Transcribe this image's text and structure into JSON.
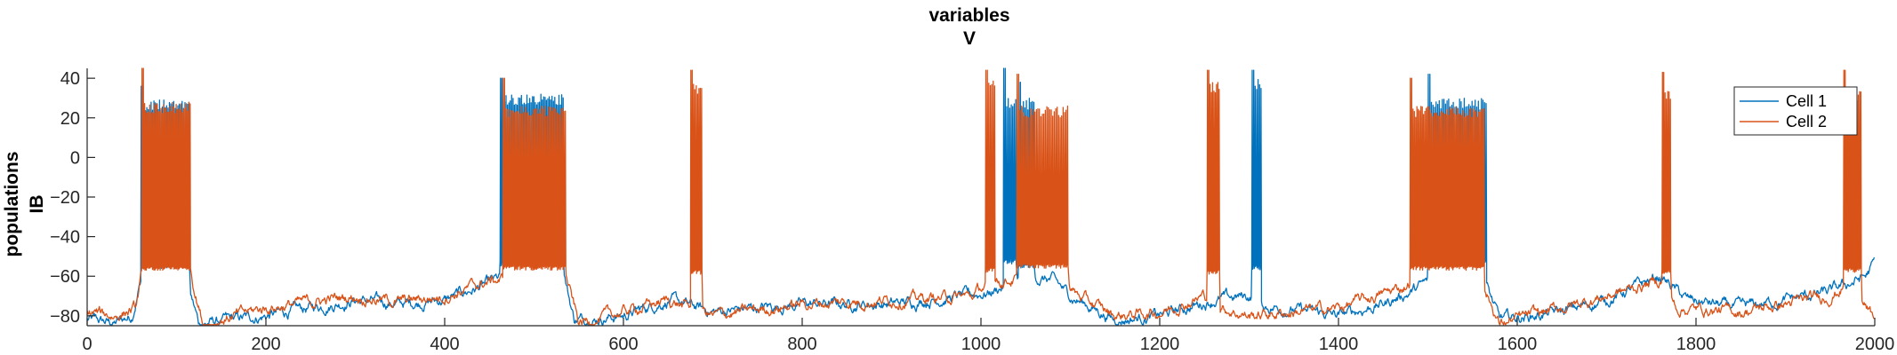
{
  "chart_data": {
    "type": "line",
    "title": [
      "variables",
      "V"
    ],
    "ylabel": [
      "populations",
      "IB"
    ],
    "xlabel": "",
    "xlim": [
      0,
      2000
    ],
    "ylim": [
      -85,
      45
    ],
    "xticks": [
      0,
      200,
      400,
      600,
      800,
      1000,
      1200,
      1400,
      1600,
      1800,
      2000
    ],
    "yticks": [
      -80,
      -60,
      -40,
      -20,
      0,
      20,
      40
    ],
    "xtick_labels": [
      "0",
      "200",
      "400",
      "600",
      "800",
      "1000",
      "1200",
      "1400",
      "1600",
      "1800",
      "2000"
    ],
    "ytick_labels": [
      "−80",
      "−60",
      "−40",
      "−20",
      "0",
      "20",
      "40"
    ],
    "grid": false,
    "legend_placement": "top-right",
    "series": [
      {
        "name": "Cell 1",
        "color": "#0072BD",
        "baseline": [
          [
            0,
            -82
          ],
          [
            30,
            -84
          ],
          [
            50,
            -80
          ],
          [
            60,
            -62
          ],
          [
            110,
            -58
          ],
          [
            125,
            -84
          ],
          [
            200,
            -80
          ],
          [
            300,
            -72
          ],
          [
            350,
            -74
          ],
          [
            400,
            -72
          ],
          [
            460,
            -62
          ],
          [
            530,
            -56
          ],
          [
            545,
            -82
          ],
          [
            600,
            -80
          ],
          [
            650,
            -72
          ],
          [
            700,
            -78
          ],
          [
            800,
            -74
          ],
          [
            900,
            -74
          ],
          [
            980,
            -70
          ],
          [
            1010,
            -68
          ],
          [
            1050,
            -60
          ],
          [
            1080,
            -62
          ],
          [
            1100,
            -70
          ],
          [
            1150,
            -82
          ],
          [
            1200,
            -80
          ],
          [
            1260,
            -72
          ],
          [
            1300,
            -70
          ],
          [
            1320,
            -75
          ],
          [
            1400,
            -80
          ],
          [
            1450,
            -74
          ],
          [
            1480,
            -68
          ],
          [
            1520,
            -58
          ],
          [
            1560,
            -60
          ],
          [
            1580,
            -82
          ],
          [
            1650,
            -78
          ],
          [
            1700,
            -72
          ],
          [
            1760,
            -60
          ],
          [
            1790,
            -72
          ],
          [
            1850,
            -76
          ],
          [
            1950,
            -68
          ],
          [
            1990,
            -60
          ],
          [
            2000,
            -53
          ]
        ],
        "bursts": [
          {
            "start": 60,
            "end": 115,
            "peak": 36,
            "plateau": 29,
            "trough": -54
          },
          {
            "start": 462,
            "end": 533,
            "peak": 40,
            "plateau": 32,
            "trough": -53
          },
          {
            "start": 1025,
            "end": 1040,
            "peak": 45,
            "plateau": 30,
            "trough": -52
          },
          {
            "start": 1042,
            "end": 1060,
            "peak": 38,
            "plateau": 30,
            "trough": -54
          },
          {
            "start": 1303,
            "end": 1313,
            "peak": 44,
            "plateau": 40,
            "trough": -55
          },
          {
            "start": 1500,
            "end": 1565,
            "peak": 42,
            "plateau": 30,
            "trough": -53
          }
        ]
      },
      {
        "name": "Cell 2",
        "color": "#D95319",
        "baseline": [
          [
            0,
            -78
          ],
          [
            30,
            -80
          ],
          [
            55,
            -76
          ],
          [
            60,
            -62
          ],
          [
            115,
            -60
          ],
          [
            130,
            -84
          ],
          [
            200,
            -76
          ],
          [
            300,
            -70
          ],
          [
            350,
            -73
          ],
          [
            400,
            -70
          ],
          [
            455,
            -62
          ],
          [
            535,
            -60
          ],
          [
            550,
            -84
          ],
          [
            600,
            -78
          ],
          [
            650,
            -72
          ],
          [
            700,
            -80
          ],
          [
            800,
            -74
          ],
          [
            900,
            -72
          ],
          [
            990,
            -70
          ],
          [
            1000,
            -66
          ],
          [
            1030,
            -62
          ],
          [
            1080,
            -60
          ],
          [
            1100,
            -68
          ],
          [
            1150,
            -80
          ],
          [
            1200,
            -78
          ],
          [
            1250,
            -70
          ],
          [
            1270,
            -76
          ],
          [
            1300,
            -80
          ],
          [
            1400,
            -76
          ],
          [
            1470,
            -66
          ],
          [
            1490,
            -60
          ],
          [
            1560,
            -62
          ],
          [
            1580,
            -84
          ],
          [
            1650,
            -76
          ],
          [
            1700,
            -70
          ],
          [
            1760,
            -62
          ],
          [
            1780,
            -76
          ],
          [
            1850,
            -78
          ],
          [
            1950,
            -70
          ],
          [
            1970,
            -64
          ],
          [
            1990,
            -76
          ],
          [
            2000,
            -82
          ]
        ],
        "bursts": [
          {
            "start": 61,
            "end": 116,
            "peak": 45,
            "plateau": 28,
            "trough": -55
          },
          {
            "start": 465,
            "end": 535,
            "peak": 40,
            "plateau": 26,
            "trough": -55
          },
          {
            "start": 675,
            "end": 688,
            "peak": 44,
            "plateau": 38,
            "trough": -57
          },
          {
            "start": 1005,
            "end": 1015,
            "peak": 44,
            "plateau": 40,
            "trough": -56
          },
          {
            "start": 1040,
            "end": 1098,
            "peak": 42,
            "plateau": 26,
            "trough": -54
          },
          {
            "start": 1253,
            "end": 1267,
            "peak": 44,
            "plateau": 38,
            "trough": -57
          },
          {
            "start": 1480,
            "end": 1563,
            "peak": 40,
            "plateau": 26,
            "trough": -55
          },
          {
            "start": 1762,
            "end": 1772,
            "peak": 43,
            "plateau": 35,
            "trough": -57
          },
          {
            "start": 1965,
            "end": 1985,
            "peak": 44,
            "plateau": 34,
            "trough": -56
          }
        ]
      }
    ]
  }
}
